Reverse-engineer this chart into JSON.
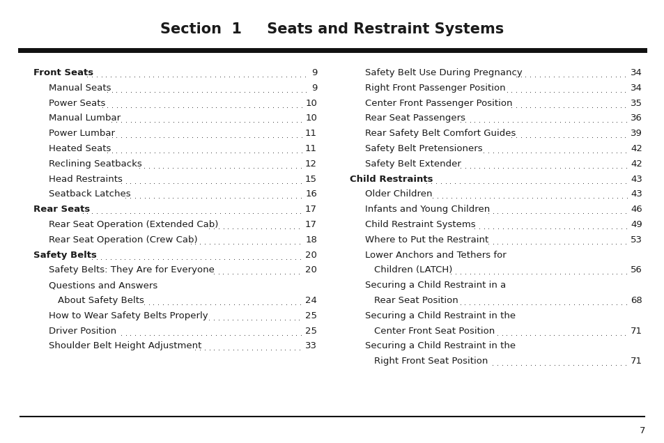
{
  "title": "Section  1     Seats and Restraint Systems",
  "bg_color": "#ffffff",
  "text_color": "#1a1a1a",
  "title_color": "#1a1a1a",
  "page_number": "7",
  "left_entries": [
    {
      "text": "Front Seats",
      "page": "9",
      "indent": 0,
      "bold": true
    },
    {
      "text": "Manual Seats",
      "page": "9",
      "indent": 1,
      "bold": false
    },
    {
      "text": "Power Seats",
      "page": "10",
      "indent": 1,
      "bold": false
    },
    {
      "text": "Manual Lumbar",
      "page": "10",
      "indent": 1,
      "bold": false
    },
    {
      "text": "Power Lumbar",
      "page": "11",
      "indent": 1,
      "bold": false
    },
    {
      "text": "Heated Seats",
      "page": "11",
      "indent": 1,
      "bold": false
    },
    {
      "text": "Reclining Seatbacks",
      "page": "12",
      "indent": 1,
      "bold": false
    },
    {
      "text": "Head Restraints",
      "page": "15",
      "indent": 1,
      "bold": false
    },
    {
      "text": "Seatback Latches",
      "page": "16",
      "indent": 1,
      "bold": false
    },
    {
      "text": "Rear Seats",
      "page": "17",
      "indent": 0,
      "bold": true
    },
    {
      "text": "Rear Seat Operation (Extended Cab)",
      "page": "17",
      "indent": 1,
      "bold": false
    },
    {
      "text": "Rear Seat Operation (Crew Cab)",
      "page": "18",
      "indent": 1,
      "bold": false
    },
    {
      "text": "Safety Belts",
      "page": "20",
      "indent": 0,
      "bold": true
    },
    {
      "text": "Safety Belts: They Are for Everyone",
      "page": "20",
      "indent": 1,
      "bold": false
    },
    {
      "text": "Questions and Answers",
      "page": "",
      "indent": 1,
      "bold": false
    },
    {
      "text": "About Safety Belts",
      "page": "24",
      "indent": 2,
      "bold": false
    },
    {
      "text": "How to Wear Safety Belts Properly",
      "page": "25",
      "indent": 1,
      "bold": false
    },
    {
      "text": "Driver Position",
      "page": "25",
      "indent": 1,
      "bold": false
    },
    {
      "text": "Shoulder Belt Height Adjustment",
      "page": "33",
      "indent": 1,
      "bold": false
    }
  ],
  "right_entries": [
    {
      "text": "Safety Belt Use During Pregnancy",
      "page": "34",
      "indent": 1,
      "bold": false
    },
    {
      "text": "Right Front Passenger Position",
      "page": "34",
      "indent": 1,
      "bold": false
    },
    {
      "text": "Center Front Passenger Position",
      "page": "35",
      "indent": 1,
      "bold": false
    },
    {
      "text": "Rear Seat Passengers",
      "page": "36",
      "indent": 1,
      "bold": false
    },
    {
      "text": "Rear Safety Belt Comfort Guides",
      "page": "39",
      "indent": 1,
      "bold": false
    },
    {
      "text": "Safety Belt Pretensioners",
      "page": "42",
      "indent": 1,
      "bold": false
    },
    {
      "text": "Safety Belt Extender",
      "page": "42",
      "indent": 1,
      "bold": false
    },
    {
      "text": "Child Restraints",
      "page": "43",
      "indent": 0,
      "bold": true
    },
    {
      "text": "Older Children",
      "page": "43",
      "indent": 1,
      "bold": false
    },
    {
      "text": "Infants and Young Children",
      "page": "46",
      "indent": 1,
      "bold": false
    },
    {
      "text": "Child Restraint Systems",
      "page": "49",
      "indent": 1,
      "bold": false
    },
    {
      "text": "Where to Put the Restraint",
      "page": "53",
      "indent": 1,
      "bold": false
    },
    {
      "text": "Lower Anchors and Tethers for",
      "page": "",
      "indent": 1,
      "bold": false
    },
    {
      "text": "Children (LATCH)",
      "page": "56",
      "indent": 2,
      "bold": false
    },
    {
      "text": "Securing a Child Restraint in a",
      "page": "",
      "indent": 1,
      "bold": false
    },
    {
      "text": "Rear Seat Position",
      "page": "68",
      "indent": 2,
      "bold": false
    },
    {
      "text": "Securing a Child Restraint in the",
      "page": "",
      "indent": 1,
      "bold": false
    },
    {
      "text": "Center Front Seat Position",
      "page": "71",
      "indent": 2,
      "bold": false
    },
    {
      "text": "Securing a Child Restraint in the",
      "page": "",
      "indent": 1,
      "bold": false
    },
    {
      "text": "Right Front Seat Position",
      "page": "71",
      "indent": 2,
      "bold": false
    }
  ]
}
